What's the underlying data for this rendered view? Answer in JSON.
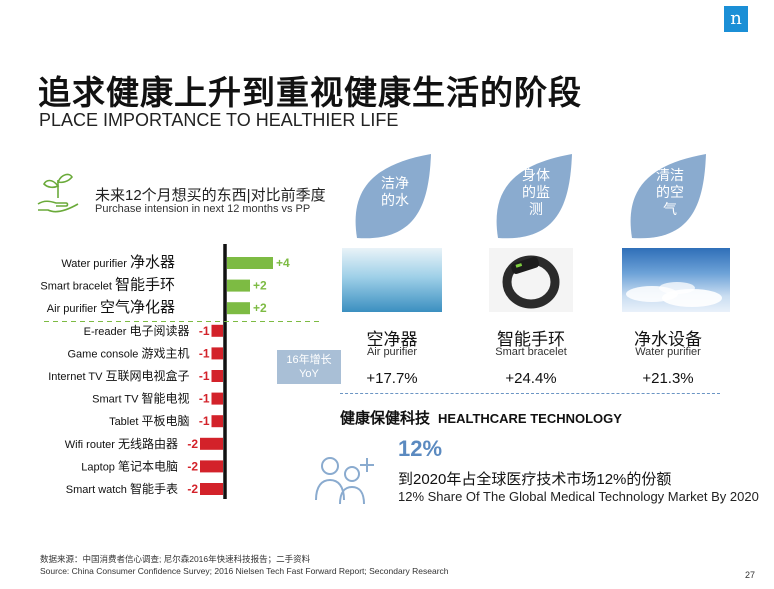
{
  "header": {
    "logo": "n",
    "title_cn": "追求健康上升到重视健康生活的阶段",
    "title_en": "PLACE IMPORTANCE TO HEALTHIER LIFE"
  },
  "legend": {
    "cn": "未来12个月想买的东西|对比前季度",
    "en": "Purchase intension in next 12 months vs PP"
  },
  "chart_data": {
    "type": "bar",
    "orientation": "horizontal",
    "categories": [
      "Water purifier 净水器",
      "Smart bracelet 智能手环",
      "Air purifier 空气净化器",
      "E-reader 电子阅读器",
      "Game console 游戏主机",
      "Internet TV 互联网电视盒子",
      "Smart TV 智能电视",
      "Tablet 平板电脑",
      "Wifi router 无线路由器",
      "Laptop 笔记本电脑",
      "Smart watch 智能手表"
    ],
    "labels_en": [
      "Water purifier",
      "Smart bracelet",
      "Air purifier",
      "E-reader",
      "Game console",
      "Internet TV",
      "Smart TV",
      "Tablet",
      "Wifi router",
      "Laptop",
      "Smart watch"
    ],
    "labels_cn": [
      "净水器",
      "智能手环",
      "空气净化器",
      "电子阅读器",
      "游戏主机",
      "互联网电视盒子",
      "智能电视",
      "平板电脑",
      "无线路由器",
      "笔记本电脑",
      "智能手表"
    ],
    "values": [
      4,
      2,
      2,
      -1,
      -1,
      -1,
      -1,
      -1,
      -2,
      -2,
      -2
    ],
    "value_labels": [
      "+4",
      "+2",
      "+2",
      "-1",
      "-1",
      "-1",
      "-1",
      "-1",
      "-2",
      "-2",
      "-2"
    ],
    "positive_color": "#7dbb43",
    "negative_color": "#d3222a",
    "axis_color": "#111111"
  },
  "drops": [
    {
      "text": "洁净的水",
      "lines": [
        "洁净",
        "的水"
      ]
    },
    {
      "text": "身体的监测",
      "lines": [
        "身体",
        "的监",
        "测"
      ]
    },
    {
      "text": "清洁的空气",
      "lines": [
        "清洁",
        "的空",
        "气"
      ]
    }
  ],
  "products": [
    {
      "cn": "空净器",
      "en": "Air purifier",
      "yoy": "+17.7%"
    },
    {
      "cn": "智能手环",
      "en": "Smart bracelet",
      "yoy": "+24.4%"
    },
    {
      "cn": "净水设备",
      "en": "Water purifier",
      "yoy": "+21.3%"
    }
  ],
  "yoy_box": {
    "line1": "16年增长",
    "line2": "YoY"
  },
  "healthcare": {
    "title_cn": "健康保健科技",
    "title_en": "HEALTHCARE TECHNOLOGY",
    "share_pct": "12%",
    "share_cn": "到2020年占全球医疗技术市场12%的份额",
    "share_en": "12% Share Of The Global Medical Technology Market By 2020"
  },
  "footer": {
    "source_cn": "数据来源：中国消费者信心调查; 尼尔森2016年快速科技报告；二手资料",
    "source_en": "Source: China Consumer Confidence Survey; 2016 Nielsen Tech Fast Forward Report; Secondary Research",
    "page": "27"
  },
  "colors": {
    "drop_fill": "#8aabcf",
    "accent_blue": "#5b8ac0"
  }
}
